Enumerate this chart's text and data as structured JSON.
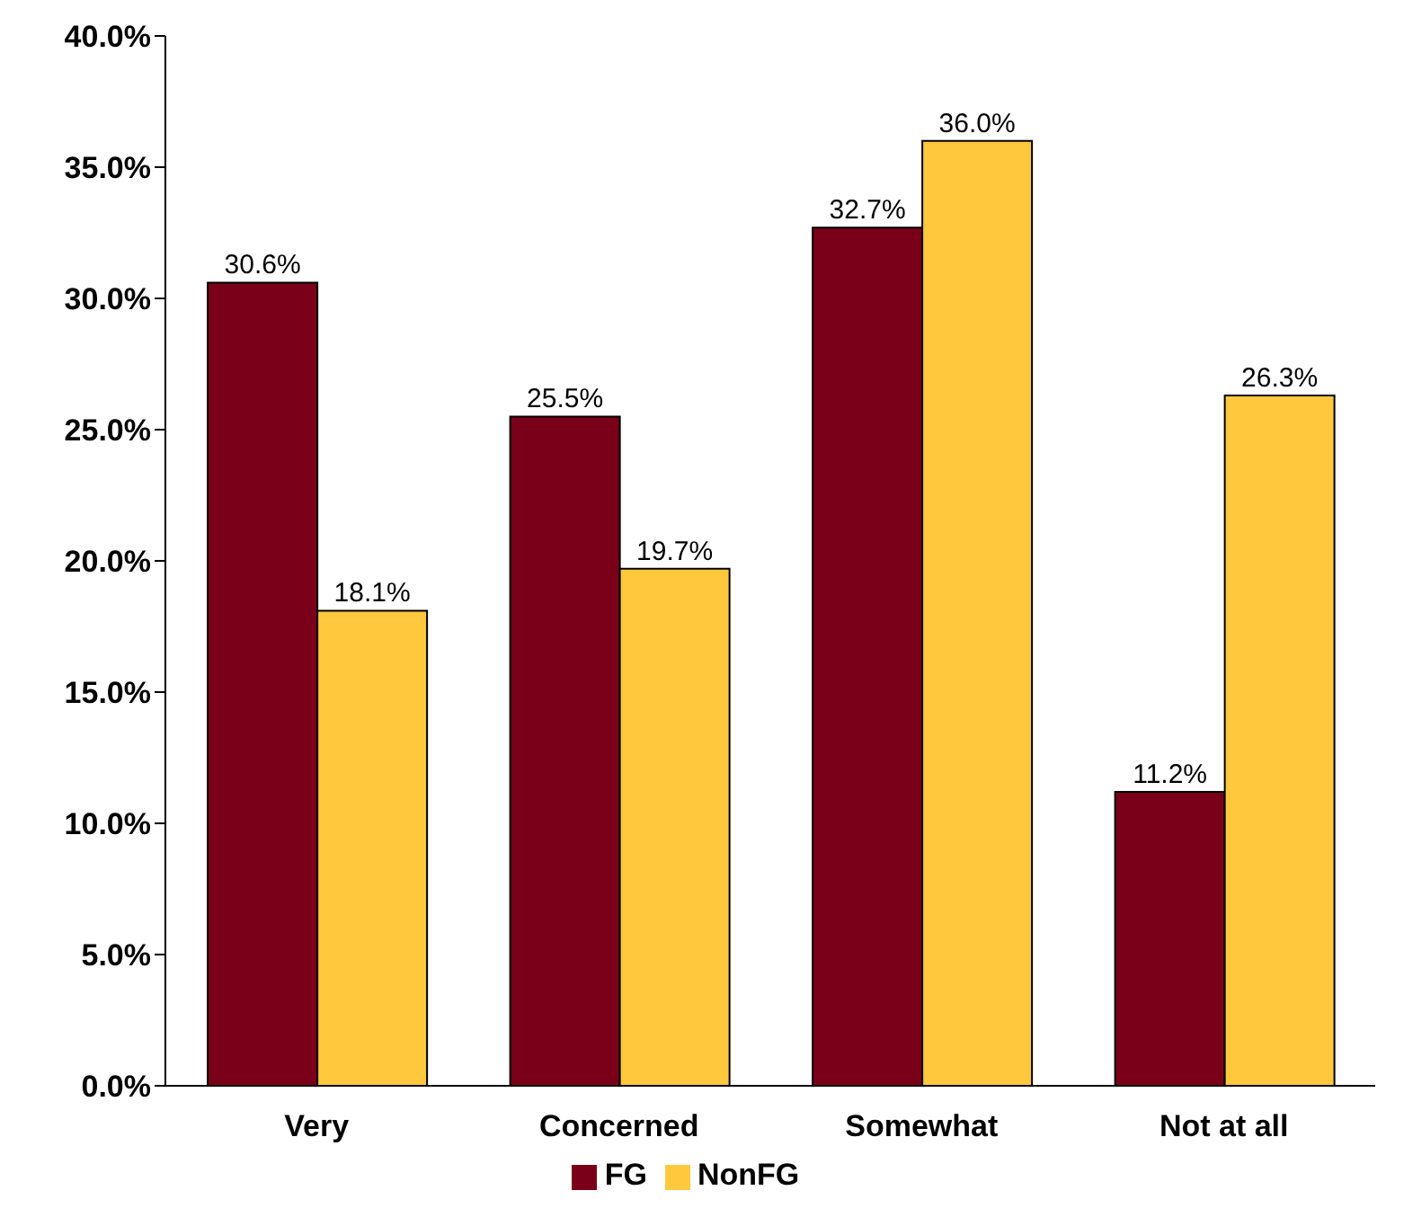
{
  "chart_data": {
    "type": "bar",
    "categories": [
      "Very",
      "Concerned",
      "Somewhat",
      "Not at all"
    ],
    "series": [
      {
        "name": "FG",
        "color": "#7a0019",
        "values": [
          30.6,
          25.5,
          32.7,
          11.2
        ],
        "value_labels": [
          "30.6%",
          "25.5%",
          "32.7%",
          "11.2%"
        ]
      },
      {
        "name": "NonFG",
        "color": "#ffc83d",
        "values": [
          18.1,
          19.7,
          36.0,
          26.3
        ],
        "value_labels": [
          "18.1%",
          "19.7%",
          "36.0%",
          "26.3%"
        ]
      }
    ],
    "ylim": [
      0,
      40
    ],
    "yticks": [
      {
        "value": 0,
        "label": "0.0%"
      },
      {
        "value": 5,
        "label": "5.0%"
      },
      {
        "value": 10,
        "label": "10.0%"
      },
      {
        "value": 15,
        "label": "15.0%"
      },
      {
        "value": 20,
        "label": "20.0%"
      },
      {
        "value": 25,
        "label": "25.0%"
      },
      {
        "value": 30,
        "label": "30.0%"
      },
      {
        "value": 35,
        "label": "35.0%"
      },
      {
        "value": 40,
        "label": "40.0%"
      }
    ],
    "grid": false,
    "legend": "bottom"
  }
}
